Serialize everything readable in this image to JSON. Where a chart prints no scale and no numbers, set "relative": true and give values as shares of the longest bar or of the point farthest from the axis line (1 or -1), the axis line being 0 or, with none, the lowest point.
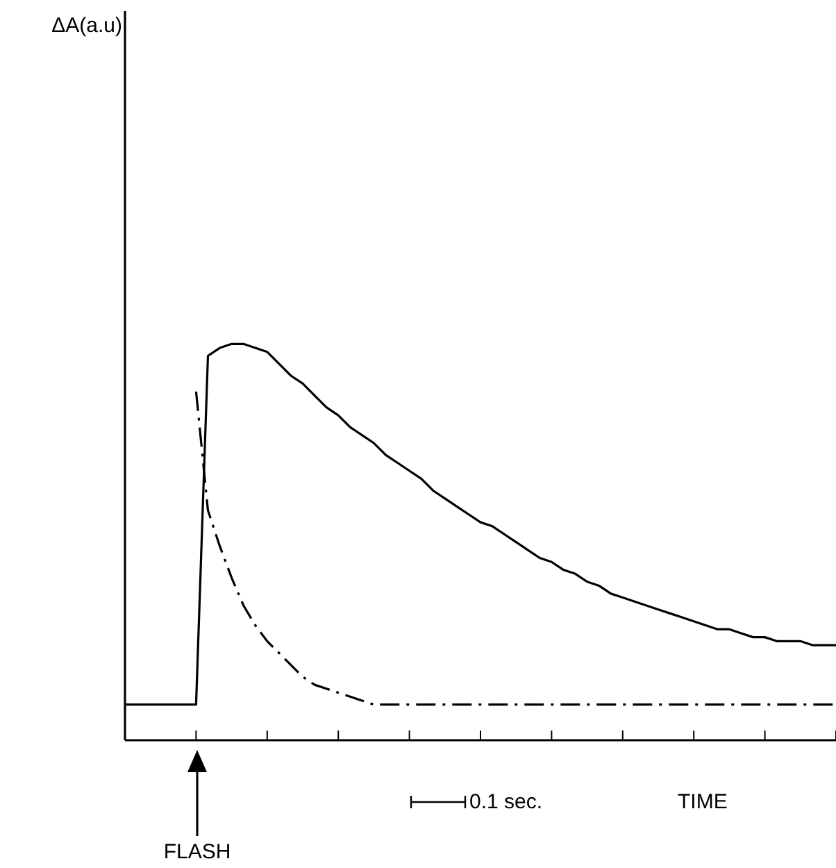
{
  "chart_data": {
    "type": "line",
    "relative": true,
    "xlabel": "TIME",
    "annotations": [
      "ΔA(a.u)",
      "0.1 sec.",
      "FLASH"
    ],
    "grid": false,
    "legend": false,
    "marker": "none",
    "categories": [
      null,
      null,
      null,
      null,
      null,
      null,
      null,
      null,
      null,
      null,
      null,
      null,
      null,
      null,
      null,
      null,
      null,
      null,
      null,
      null,
      null,
      null,
      null,
      null,
      null,
      null,
      null,
      null,
      null,
      null,
      null,
      null,
      null,
      null,
      null,
      null,
      null,
      null,
      null,
      null,
      null,
      null,
      null,
      null,
      null,
      null,
      null,
      null,
      null,
      null,
      null,
      null,
      null,
      null,
      null,
      null,
      null,
      null,
      null,
      null,
      null
    ],
    "series": [
      {
        "color": "#000000",
        "line_style": "solid",
        "values": [
          0.09,
          0.09,
          0.09,
          0.09,
          0.09,
          0.09,
          0.09,
          0.97,
          0.99,
          1,
          1,
          0.99,
          0.98,
          0.95,
          0.92,
          0.9,
          0.87,
          0.84,
          0.82,
          0.79,
          0.77,
          0.75,
          0.72,
          0.7,
          0.68,
          0.66,
          0.63,
          0.61,
          0.59,
          0.57,
          0.55,
          0.54,
          0.52,
          0.5,
          0.48,
          0.46,
          0.45,
          0.43,
          0.42,
          0.4,
          0.39,
          0.37,
          0.36,
          0.35,
          0.34,
          0.33,
          0.32,
          0.31,
          0.3,
          0.29,
          0.28,
          0.28,
          0.27,
          0.26,
          0.26,
          0.25,
          0.25,
          0.25,
          0.24,
          0.24,
          0.24
        ]
      },
      {
        "color": "#000000",
        "line_style": "dashed",
        "values": [
          null,
          null,
          null,
          null,
          null,
          null,
          0.88,
          0.58,
          0.49,
          0.41,
          0.34,
          0.29,
          0.25,
          0.22,
          0.19,
          0.16,
          0.14,
          0.13,
          0.12,
          0.11,
          0.1,
          0.09,
          0.09,
          0.09,
          0.09,
          0.09,
          0.09,
          0.09,
          0.09,
          0.09,
          0.09,
          0.09,
          0.09,
          0.09,
          0.09,
          0.09,
          0.09,
          0.09,
          0.09,
          0.09,
          0.09,
          0.09,
          0.09,
          0.09,
          0.09,
          0.09,
          0.09,
          0.09,
          0.09,
          0.09,
          0.09,
          0.09,
          0.09,
          0.09,
          0.09,
          0.09,
          0.09,
          0.09,
          0.09,
          0.09,
          0.09
        ]
      }
    ]
  }
}
